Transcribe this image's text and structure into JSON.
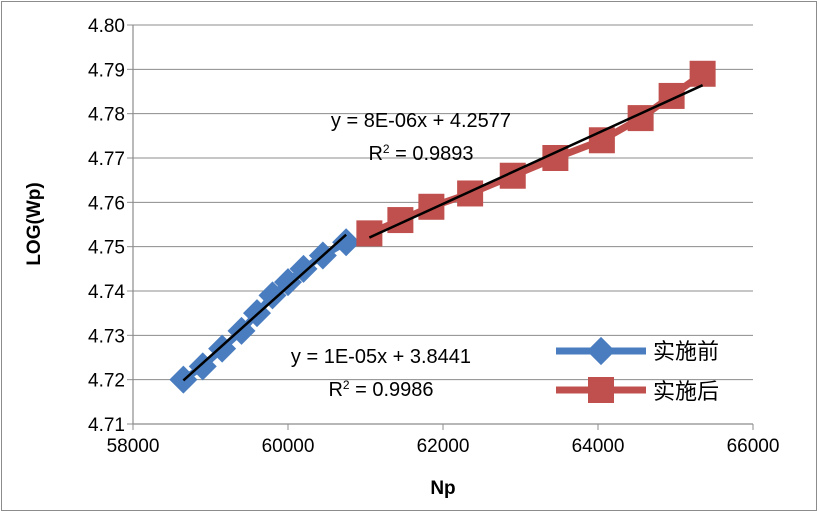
{
  "chart_data": {
    "type": "scatter",
    "xlabel": "Np",
    "ylabel": "LOG(Wp)",
    "xlim": [
      58000,
      66000
    ],
    "ylim": [
      4.71,
      4.8
    ],
    "x_ticks": [
      "58000",
      "60000",
      "62000",
      "64000",
      "66000"
    ],
    "y_ticks": [
      "4.71",
      "4.72",
      "4.73",
      "4.74",
      "4.75",
      "4.76",
      "4.77",
      "4.78",
      "4.79",
      "4.80"
    ],
    "grid": "horizontal",
    "legend_position": "bottom-right",
    "series": [
      {
        "name": "实施前",
        "color": "#4a7dbf",
        "marker": "diamond",
        "x": [
          58650,
          58900,
          59150,
          59400,
          59600,
          59800,
          60000,
          60200,
          60450,
          60750
        ],
        "y": [
          4.72,
          4.723,
          4.727,
          4.731,
          4.735,
          4.739,
          4.742,
          4.745,
          4.748,
          4.751
        ],
        "trendline": {
          "label": "y = 1E-05x + 3.8441",
          "r2_prefix": "R",
          "r2_sup": "2",
          "r2_value": " = 0.9986",
          "x_range": [
            58650,
            60750
          ]
        }
      },
      {
        "name": "实施后",
        "color": "#c0504d",
        "marker": "square",
        "x": [
          61050,
          61450,
          61850,
          62350,
          62900,
          63450,
          64050,
          64550,
          64950,
          65350
        ],
        "y": [
          4.753,
          4.756,
          4.759,
          4.762,
          4.766,
          4.77,
          4.774,
          4.779,
          4.784,
          4.789
        ],
        "trendline": {
          "label": "y = 8E-06x + 4.2577",
          "r2_prefix": "R",
          "r2_sup": "2",
          "r2_value": " = 0.9893",
          "x_range": [
            61050,
            65350
          ]
        }
      }
    ]
  }
}
